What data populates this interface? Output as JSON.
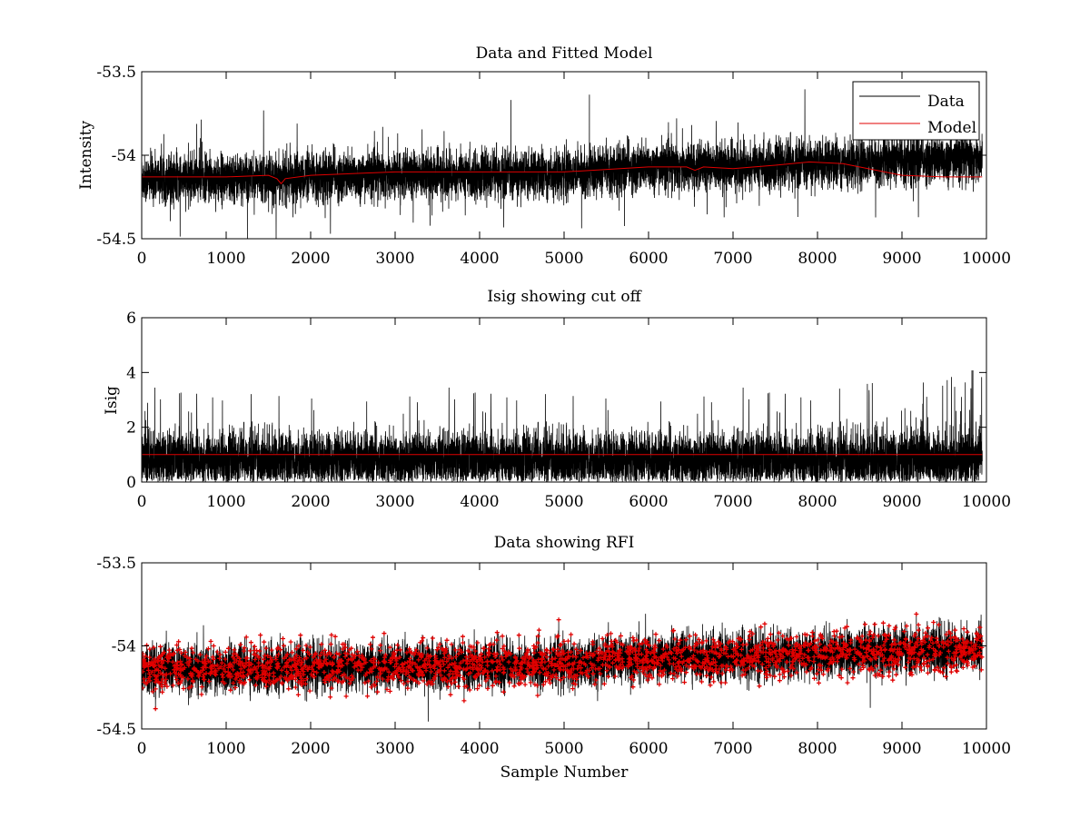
{
  "colors": {
    "data": "#000000",
    "model": "#e00000",
    "background": "#ffffff"
  },
  "chart_data": [
    {
      "type": "line",
      "title": "Data and Fitted Model",
      "xlabel": "",
      "ylabel": "Intensity",
      "xlim": [
        0,
        10000
      ],
      "ylim": [
        -54.5,
        -53.5
      ],
      "xticks": [
        0,
        1000,
        2000,
        3000,
        4000,
        5000,
        6000,
        7000,
        8000,
        9000,
        10000
      ],
      "xtick_labels": [
        "0",
        "1000",
        "2000",
        "3000",
        "4000",
        "5000",
        "6000",
        "7000",
        "8000",
        "9000",
        "10000"
      ],
      "yticks": [
        -54.5,
        -54,
        -53.5
      ],
      "ytick_labels": [
        "-54.5",
        "-54",
        "-53.5"
      ],
      "legend": {
        "position": "top-right",
        "entries": [
          "Data",
          "Model"
        ]
      },
      "series": [
        {
          "name": "Data",
          "color": "#000000",
          "style": "noisy-line",
          "n_points": 9950,
          "trend_x": [
            0,
            1000,
            2000,
            3000,
            4000,
            5000,
            6000,
            7000,
            8000,
            9000,
            9950
          ],
          "trend_y": [
            -54.14,
            -54.14,
            -54.13,
            -54.12,
            -54.12,
            -54.11,
            -54.07,
            -54.07,
            -54.05,
            -54.03,
            -54.02
          ],
          "noise_sd": 0.07,
          "spike_max": 0.4
        },
        {
          "name": "Model",
          "color": "#e00000",
          "style": "line",
          "x": [
            0,
            1000,
            1500,
            1600,
            1650,
            1700,
            2000,
            3000,
            4000,
            5000,
            6000,
            6450,
            6550,
            6650,
            7000,
            7500,
            7900,
            8300,
            8700,
            9000,
            9500,
            9950
          ],
          "y": [
            -54.13,
            -54.13,
            -54.12,
            -54.14,
            -54.17,
            -54.14,
            -54.12,
            -54.1,
            -54.1,
            -54.1,
            -54.07,
            -54.07,
            -54.09,
            -54.07,
            -54.08,
            -54.06,
            -54.04,
            -54.05,
            -54.09,
            -54.12,
            -54.13,
            -54.13
          ]
        }
      ]
    },
    {
      "type": "line",
      "title": "Isig showing cut off",
      "xlabel": "",
      "ylabel": "Isig",
      "xlim": [
        0,
        10000
      ],
      "ylim": [
        0,
        6
      ],
      "xticks": [
        0,
        1000,
        2000,
        3000,
        4000,
        5000,
        6000,
        7000,
        8000,
        9000,
        10000
      ],
      "xtick_labels": [
        "0",
        "1000",
        "2000",
        "3000",
        "4000",
        "5000",
        "6000",
        "7000",
        "8000",
        "9000",
        "10000"
      ],
      "yticks": [
        0,
        2,
        4,
        6
      ],
      "ytick_labels": [
        "0",
        "2",
        "4",
        "6"
      ],
      "series": [
        {
          "color": "#000000",
          "style": "noisy-line-positive",
          "n_points": 9950,
          "mean": 0.8,
          "typical_max": 1.9,
          "max_x": [
            0,
            8000,
            8600,
            9000,
            9950
          ],
          "max_y": [
            3.5,
            3.5,
            4.0,
            3.6,
            4.2
          ]
        },
        {
          "name": "cut off",
          "color": "#e00000",
          "style": "line",
          "x": [
            0,
            9950
          ],
          "y": [
            1,
            1
          ]
        }
      ]
    },
    {
      "type": "line",
      "title": "Data showing RFI",
      "xlabel": "Sample Number",
      "ylabel": "",
      "xlim": [
        0,
        10000
      ],
      "ylim": [
        -54.5,
        -53.5
      ],
      "xticks": [
        0,
        1000,
        2000,
        3000,
        4000,
        5000,
        6000,
        7000,
        8000,
        9000,
        10000
      ],
      "xtick_labels": [
        "0",
        "1000",
        "2000",
        "3000",
        "4000",
        "5000",
        "6000",
        "7000",
        "8000",
        "9000",
        "10000"
      ],
      "yticks": [
        -54.5,
        -54,
        -53.5
      ],
      "ytick_labels": [
        "-54.5",
        "-54",
        "-53.5"
      ],
      "series": [
        {
          "color": "#000000",
          "style": "noisy-line",
          "n_points": 9950,
          "trend_x": [
            0,
            1000,
            2000,
            3000,
            4000,
            5000,
            6000,
            7000,
            8000,
            9000,
            9950
          ],
          "trend_y": [
            -54.14,
            -54.14,
            -54.13,
            -54.12,
            -54.12,
            -54.11,
            -54.07,
            -54.07,
            -54.05,
            -54.03,
            -54.02
          ],
          "noise_sd": 0.07
        },
        {
          "color": "#e00000",
          "style": "markers",
          "marker": "+",
          "n_points": 2600
        }
      ]
    }
  ]
}
